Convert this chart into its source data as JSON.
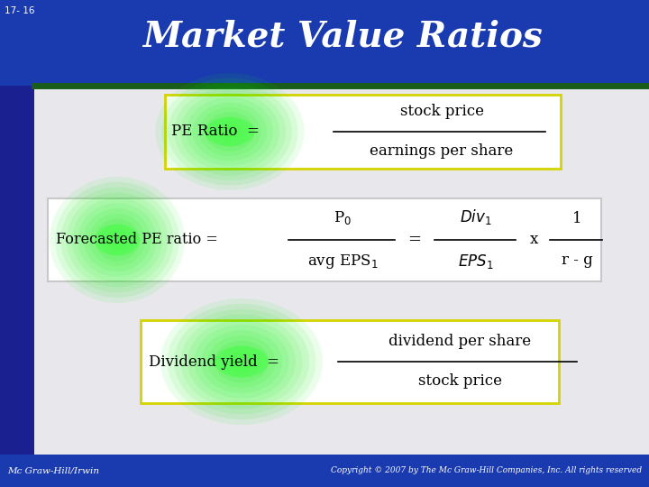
{
  "title": "Market Value Ratios",
  "slide_number": "17- 16",
  "header_bg_color": "#1a3ab0",
  "sidebar_color": "#1a2090",
  "body_bg_color": "#e8e8ec",
  "green_line_color": "#1a5c1a",
  "footer_bg_color": "#1a3ab0",
  "footer_text_left": "Mc Graw-Hill/Irwin",
  "footer_text_right": "Copyright © 2007 by The Mc Graw-Hill Companies, Inc. All rights reserved",
  "box1_border": "#d4d400",
  "box2_border": "#c8c8c8",
  "box3_border": "#d4d400",
  "formula1_left": "PE Ratio  =",
  "formula1_num": "stock price",
  "formula1_den": "earnings per share",
  "formula2_left": "Forecasted PE ratio =",
  "formula3_left": "Dividend yield  =",
  "formula3_num": "dividend per share",
  "formula3_den": "stock price"
}
